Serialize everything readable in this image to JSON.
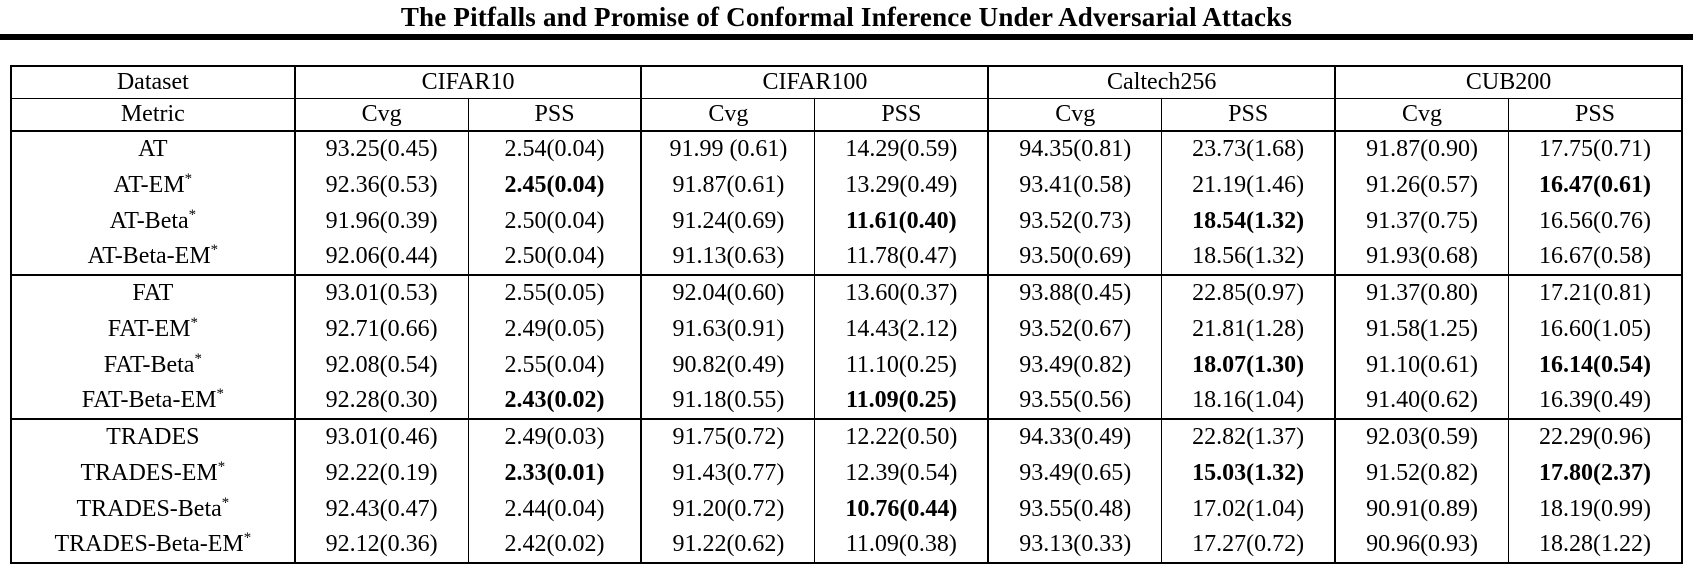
{
  "title": "The Pitfalls and Promise of Conformal Inference Under Adversarial Attacks",
  "table": {
    "header": {
      "dataset_label": "Dataset",
      "metric_label": "Metric",
      "datasets": [
        "CIFAR10",
        "CIFAR100",
        "Caltech256",
        "CUB200"
      ],
      "metrics": [
        "Cvg",
        "PSS"
      ]
    },
    "groups": [
      {
        "rows": [
          {
            "label": "AT",
            "cells": [
              {
                "v": "93.25(0.45)"
              },
              {
                "v": "2.54(0.04)"
              },
              {
                "v": "91.99 (0.61)"
              },
              {
                "v": "14.29(0.59)"
              },
              {
                "v": "94.35(0.81)"
              },
              {
                "v": "23.73(1.68)"
              },
              {
                "v": "91.87(0.90)"
              },
              {
                "v": "17.75(0.71)"
              }
            ]
          },
          {
            "label": "AT-EM*",
            "cells": [
              {
                "v": "92.36(0.53)"
              },
              {
                "v": "2.45(0.04)",
                "b": true
              },
              {
                "v": "91.87(0.61)"
              },
              {
                "v": "13.29(0.49)"
              },
              {
                "v": "93.41(0.58)"
              },
              {
                "v": "21.19(1.46)"
              },
              {
                "v": "91.26(0.57)"
              },
              {
                "v": "16.47(0.61)",
                "b": true
              }
            ]
          },
          {
            "label": "AT-Beta*",
            "cells": [
              {
                "v": "91.96(0.39)"
              },
              {
                "v": "2.50(0.04)"
              },
              {
                "v": "91.24(0.69)"
              },
              {
                "v": "11.61(0.40)",
                "b": true
              },
              {
                "v": "93.52(0.73)"
              },
              {
                "v": "18.54(1.32)",
                "b": true
              },
              {
                "v": "91.37(0.75)"
              },
              {
                "v": "16.56(0.76)"
              }
            ]
          },
          {
            "label": "AT-Beta-EM*",
            "cells": [
              {
                "v": "92.06(0.44)"
              },
              {
                "v": "2.50(0.04)"
              },
              {
                "v": "91.13(0.63)"
              },
              {
                "v": "11.78(0.47)"
              },
              {
                "v": "93.50(0.69)"
              },
              {
                "v": "18.56(1.32)"
              },
              {
                "v": "91.93(0.68)"
              },
              {
                "v": "16.67(0.58)"
              }
            ]
          }
        ]
      },
      {
        "rows": [
          {
            "label": "FAT",
            "cells": [
              {
                "v": "93.01(0.53)"
              },
              {
                "v": "2.55(0.05)"
              },
              {
                "v": "92.04(0.60)"
              },
              {
                "v": "13.60(0.37)"
              },
              {
                "v": "93.88(0.45)"
              },
              {
                "v": "22.85(0.97)"
              },
              {
                "v": "91.37(0.80)"
              },
              {
                "v": "17.21(0.81)"
              }
            ]
          },
          {
            "label": "FAT-EM*",
            "cells": [
              {
                "v": "92.71(0.66)"
              },
              {
                "v": "2.49(0.05)"
              },
              {
                "v": "91.63(0.91)"
              },
              {
                "v": "14.43(2.12)"
              },
              {
                "v": "93.52(0.67)"
              },
              {
                "v": "21.81(1.28)"
              },
              {
                "v": "91.58(1.25)"
              },
              {
                "v": "16.60(1.05)"
              }
            ]
          },
          {
            "label": "FAT-Beta*",
            "cells": [
              {
                "v": "92.08(0.54)"
              },
              {
                "v": "2.55(0.04)"
              },
              {
                "v": "90.82(0.49)"
              },
              {
                "v": "11.10(0.25)"
              },
              {
                "v": "93.49(0.82)"
              },
              {
                "v": "18.07(1.30)",
                "b": true
              },
              {
                "v": "91.10(0.61)"
              },
              {
                "v": "16.14(0.54)",
                "b": true
              }
            ]
          },
          {
            "label": "FAT-Beta-EM*",
            "cells": [
              {
                "v": "92.28(0.30)"
              },
              {
                "v": "2.43(0.02)",
                "b": true
              },
              {
                "v": "91.18(0.55)"
              },
              {
                "v": "11.09(0.25)",
                "b": true
              },
              {
                "v": "93.55(0.56)"
              },
              {
                "v": "18.16(1.04)"
              },
              {
                "v": "91.40(0.62)"
              },
              {
                "v": "16.39(0.49)"
              }
            ]
          }
        ]
      },
      {
        "rows": [
          {
            "label": "TRADES",
            "cells": [
              {
                "v": "93.01(0.46)"
              },
              {
                "v": "2.49(0.03)"
              },
              {
                "v": "91.75(0.72)"
              },
              {
                "v": "12.22(0.50)"
              },
              {
                "v": "94.33(0.49)"
              },
              {
                "v": "22.82(1.37)"
              },
              {
                "v": "92.03(0.59)"
              },
              {
                "v": "22.29(0.96)"
              }
            ]
          },
          {
            "label": "TRADES-EM*",
            "cells": [
              {
                "v": "92.22(0.19)"
              },
              {
                "v": "2.33(0.01)",
                "b": true
              },
              {
                "v": "91.43(0.77)"
              },
              {
                "v": "12.39(0.54)"
              },
              {
                "v": "93.49(0.65)"
              },
              {
                "v": "15.03(1.32)",
                "b": true
              },
              {
                "v": "91.52(0.82)"
              },
              {
                "v": "17.80(2.37)",
                "b": true
              }
            ]
          },
          {
            "label": "TRADES-Beta*",
            "cells": [
              {
                "v": "92.43(0.47)"
              },
              {
                "v": "2.44(0.04)"
              },
              {
                "v": "91.20(0.72)"
              },
              {
                "v": "10.76(0.44)",
                "b": true
              },
              {
                "v": "93.55(0.48)"
              },
              {
                "v": "17.02(1.04)"
              },
              {
                "v": "90.91(0.89)"
              },
              {
                "v": "18.19(0.99)"
              }
            ]
          },
          {
            "label": "TRADES-Beta-EM*",
            "cells": [
              {
                "v": "92.12(0.36)"
              },
              {
                "v": "2.42(0.02)"
              },
              {
                "v": "91.22(0.62)"
              },
              {
                "v": "11.09(0.38)"
              },
              {
                "v": "93.13(0.33)"
              },
              {
                "v": "17.27(0.72)"
              },
              {
                "v": "90.96(0.93)"
              },
              {
                "v": "18.28(1.22)"
              }
            ]
          }
        ]
      }
    ]
  }
}
